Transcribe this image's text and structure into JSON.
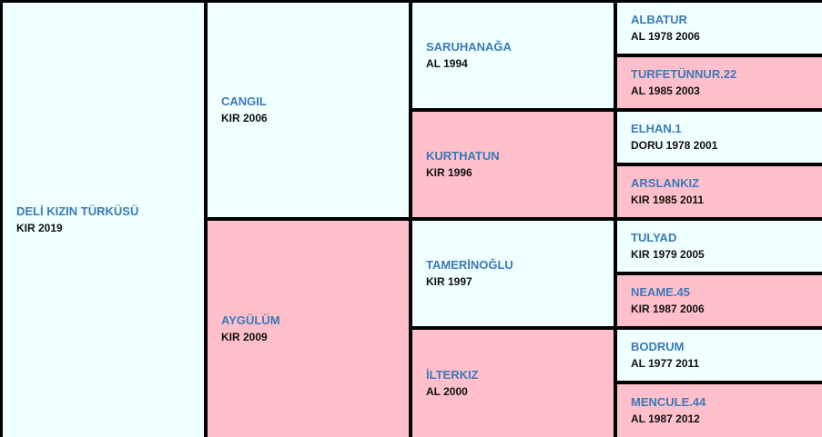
{
  "colors": {
    "male_bg": "#f0ffff",
    "female_bg": "#ffc0cb",
    "name_text": "#3a7ab8",
    "border": "#000000"
  },
  "horse": {
    "name": "DELİ KIZIN TÜRKÜSÜ",
    "info": "KIR 2019"
  },
  "sire": {
    "name": "CANGIL",
    "info": "KIR 2006"
  },
  "dam": {
    "name": "AYGÜLÜM",
    "info": "KIR 2009"
  },
  "sire_sire": {
    "name": "SARUHANAĞA",
    "info": "AL 1994"
  },
  "sire_dam": {
    "name": "KURTHATUN",
    "info": "KIR 1996"
  },
  "dam_sire": {
    "name": "TAMERİNOĞLU",
    "info": "KIR 1997"
  },
  "dam_dam": {
    "name": "İLTERKIZ",
    "info": "AL 2000"
  },
  "gen3": [
    {
      "name": "ALBATUR",
      "info": "AL 1978 2006"
    },
    {
      "name": "TURFETÜNNUR.22",
      "info": "AL 1985 2003"
    },
    {
      "name": "ELHAN.1",
      "info": "DORU 1978 2001"
    },
    {
      "name": "ARSLANKIZ",
      "info": "KIR 1985 2011"
    },
    {
      "name": "TULYAD",
      "info": "KIR 1979 2005"
    },
    {
      "name": "NEAME.45",
      "info": "KIR 1987 2006"
    },
    {
      "name": "BODRUM",
      "info": "AL 1977 2011"
    },
    {
      "name": "MENCULE.44",
      "info": "AL 1987 2012"
    }
  ]
}
